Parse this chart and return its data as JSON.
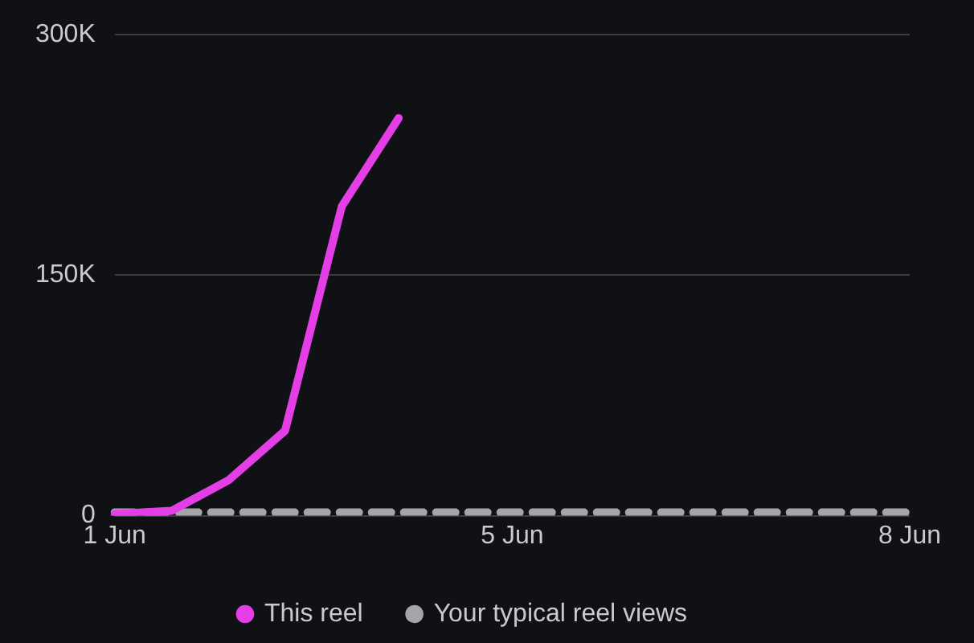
{
  "chart_data": {
    "type": "line",
    "categories": [
      "1 Jun",
      null,
      null,
      null,
      null,
      null,
      null,
      "5 Jun",
      null,
      null,
      null,
      null,
      null,
      null,
      "8 Jun"
    ],
    "ylim": [
      0,
      300000
    ],
    "yticks": [
      {
        "value": 0,
        "label": "0"
      },
      {
        "value": 150000,
        "label": "150K"
      },
      {
        "value": 300000,
        "label": "300K"
      }
    ],
    "series": [
      {
        "name": "This reel",
        "color": "#e43fe6",
        "values": [
          1000,
          3000,
          22000,
          53000,
          193000,
          248000,
          null,
          null,
          null,
          null,
          null,
          null,
          null,
          null,
          null
        ]
      },
      {
        "name": "Your typical reel views",
        "color": "#a3a5a8",
        "values": [
          2000,
          2000,
          2000,
          2000,
          2000,
          2000,
          2000,
          2000,
          2000,
          2000,
          2000,
          2000,
          2000,
          2000,
          2000
        ],
        "line_style": "dashed"
      }
    ],
    "grid": "y",
    "legend": "bottom",
    "marker": "none"
  }
}
